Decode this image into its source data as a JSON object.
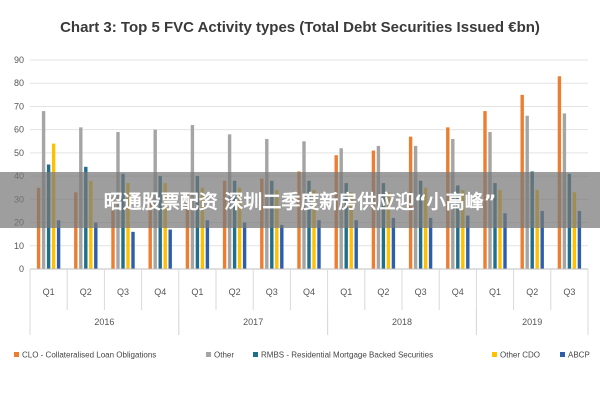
{
  "overlay": {
    "text": "昭通股票配资 深圳二季度新房供应迎“小高峰”"
  },
  "chart_data": {
    "type": "bar",
    "title": "Chart 3: Top 5 FVC Activity types (Total Debt Securities Issued €bn)",
    "ylim": [
      0,
      90
    ],
    "yticks": [
      0,
      10,
      20,
      30,
      40,
      50,
      60,
      70,
      80,
      90
    ],
    "grid": true,
    "legend_position": "bottom",
    "categories": [
      "Q1",
      "Q2",
      "Q3",
      "Q4",
      "Q1",
      "Q2",
      "Q3",
      "Q4",
      "Q1",
      "Q2",
      "Q3",
      "Q4",
      "Q1",
      "Q2",
      "Q3"
    ],
    "groups": [
      {
        "label": "2016",
        "count": 4
      },
      {
        "label": "2017",
        "count": 4
      },
      {
        "label": "2018",
        "count": 4
      },
      {
        "label": "2019",
        "count": 3
      }
    ],
    "series": [
      {
        "name": "CLO - Collateralised Loan Obligations",
        "color": "#ed7d31",
        "values": [
          35,
          33,
          31,
          31,
          33,
          38,
          39,
          42,
          49,
          51,
          57,
          61,
          68,
          75,
          83
        ]
      },
      {
        "name": "Other",
        "color": "#a5a5a5",
        "values": [
          68,
          61,
          59,
          60,
          62,
          58,
          56,
          55,
          52,
          53,
          53,
          56,
          59,
          66,
          67
        ]
      },
      {
        "name": "RMBS - Residential Mortgage Backed Securities",
        "color": "#1f6e8c",
        "values": [
          45,
          44,
          41,
          40,
          40,
          38,
          38,
          38,
          37,
          37,
          38,
          36,
          37,
          42,
          41
        ]
      },
      {
        "name": "Other CDO",
        "color": "#ffc000",
        "values": [
          54,
          38,
          37,
          37,
          35,
          35,
          34,
          34,
          33,
          33,
          35,
          34,
          34,
          34,
          33
        ]
      },
      {
        "name": "ABCP",
        "color": "#2e5eaa",
        "values": [
          21,
          20,
          16,
          17,
          21,
          20,
          19,
          21,
          21,
          22,
          22,
          23,
          24,
          25,
          25
        ]
      }
    ]
  }
}
